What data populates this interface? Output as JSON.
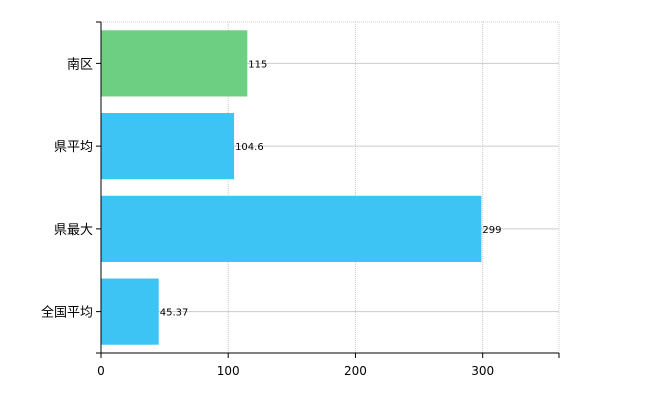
{
  "chart_data": {
    "type": "bar",
    "orientation": "horizontal",
    "categories": [
      "南区",
      "県平均",
      "県最大",
      "全国平均"
    ],
    "values": [
      115,
      104.6,
      299,
      45.37
    ],
    "value_labels": [
      "115",
      "104.6",
      "299",
      "45.37"
    ],
    "bar_colors": [
      "#6dcf82",
      "#3ec3f5",
      "#3ec3f5",
      "#3ec3f5"
    ],
    "xlim": [
      0,
      360
    ],
    "xticks": [
      0,
      100,
      200,
      300
    ],
    "xtick_labels": [
      "0",
      "100",
      "200",
      "300"
    ],
    "grid": true,
    "title": "",
    "xlabel": "",
    "ylabel": ""
  }
}
